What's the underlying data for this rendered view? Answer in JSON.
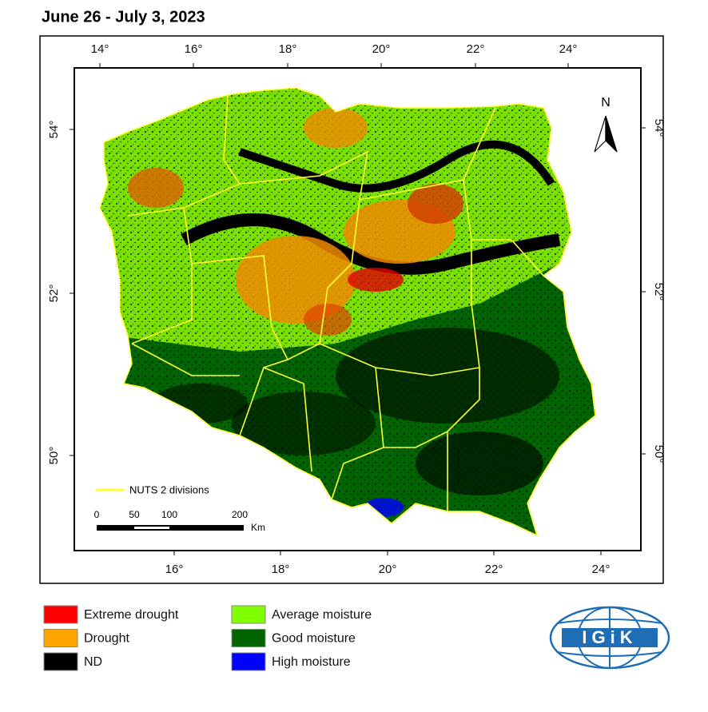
{
  "title": "June 26 - July 3, 2023",
  "graticule": {
    "top": [
      "14°",
      "16°",
      "18°",
      "20°",
      "22°",
      "24°"
    ],
    "bottom": [
      "16°",
      "18°",
      "20°",
      "22°",
      "24°"
    ],
    "left": [
      "54°",
      "52°",
      "50°"
    ],
    "right": [
      "54°",
      "52°",
      "50°"
    ]
  },
  "north": "N",
  "nuts_legend": "NUTS 2 divisions",
  "scale_bar": {
    "labels": [
      "0",
      "50",
      "100",
      "200"
    ],
    "unit": "Km"
  },
  "legend": [
    {
      "label": "Extreme drought",
      "color": "#ff0000"
    },
    {
      "label": "Drought",
      "color": "#ffa500"
    },
    {
      "label": "ND",
      "color": "#000000"
    },
    {
      "label": "Average moisture",
      "color": "#80ff00"
    },
    {
      "label": "Good moisture",
      "color": "#006400"
    },
    {
      "label": "High moisture",
      "color": "#0000ff"
    }
  ],
  "logo": "IGiK"
}
